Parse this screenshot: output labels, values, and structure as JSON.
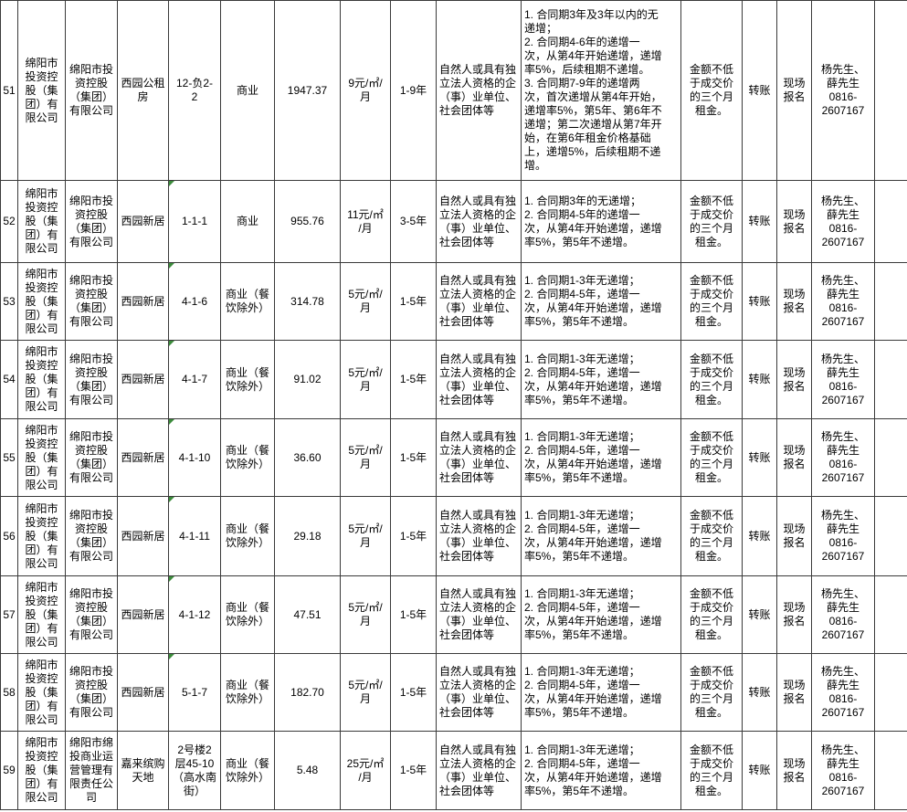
{
  "colors": {
    "error_indicator_green": "#3c8c3c",
    "grid_line": "#3a3a3a",
    "text": "#000000",
    "background": "#ffffff"
  },
  "table": {
    "column_keys": [
      "row_no",
      "lessor",
      "operating_company",
      "property_name",
      "unit_number",
      "use_type",
      "area_sqm",
      "rent_price",
      "lease_term",
      "eligible_applicants",
      "escalation_terms",
      "deposit",
      "payment_method",
      "registration_method",
      "contact",
      "notes"
    ],
    "rows": [
      {
        "row_no": "51",
        "lessor": "绵阳市\n投资控\n股（集\n团）有\n限公司",
        "operating_company": "绵阳市投\n资控股\n（集团）\n有限公司",
        "property_name": "西园公租\n房",
        "unit_number": "12-负2-\n2",
        "use_type": "商业",
        "area_sqm": "1947.37",
        "rent_price": "9元/㎡/\n月",
        "lease_term": "1-9年",
        "eligible_applicants": "自然人或具有独\n立法人资格的企\n（事）业单位、\n社会团体等",
        "escalation_terms": "1. 合同期3年及3年以内的无\n递增；\n2. 合同期4-6年的递增一\n次，从第4年开始递增，递增\n率5%，后续租期不递增。\n3. 合同期7-9年的递增两\n次，首次递增从第4年开始，\n递增率5%，第5年、第6年不\n递增；第二次递增从第7年开\n始，在第6年租金价格基础\n上，递增5%，后续租期不递\n增。",
        "deposit": "金额不低\n于成交价\n的三个月\n租金。",
        "payment_method": "转账",
        "registration_method": "现场\n报名",
        "contact": "杨先生、\n薛先生\n0816-\n2607167",
        "notes": "",
        "unit_error_indicator": false
      },
      {
        "row_no": "52",
        "lessor": "绵阳市\n投资控\n股（集\n团）有\n限公司",
        "operating_company": "绵阳市投\n资控股\n（集团）\n有限公司",
        "property_name": "西园新居",
        "unit_number": "1-1-1",
        "use_type": "商业",
        "area_sqm": "955.76",
        "rent_price": "11元/㎡\n/月",
        "lease_term": "3-5年",
        "eligible_applicants": "自然人或具有独\n立法人资格的企\n（事）业单位、\n社会团体等",
        "escalation_terms": "1. 合同期3年的无递增；\n2. 合同期4-5年的递增一\n次，从第4年开始递增，递增\n率5%，第5年不递增。",
        "deposit": "金额不低\n于成交价\n的三个月\n租金。",
        "payment_method": "转账",
        "registration_method": "现场\n报名",
        "contact": "杨先生、\n薛先生\n0816-\n2607167",
        "notes": "",
        "unit_error_indicator": true
      },
      {
        "row_no": "53",
        "lessor": "绵阳市\n投资控\n股（集\n团）有\n限公司",
        "operating_company": "绵阳市投\n资控股\n（集团）\n有限公司",
        "property_name": "西园新居",
        "unit_number": "4-1-6",
        "use_type": "商业（餐\n饮除外）",
        "area_sqm": "314.78",
        "rent_price": "5元/㎡/\n月",
        "lease_term": "1-5年",
        "eligible_applicants": "自然人或具有独\n立法人资格的企\n（事）业单位、\n社会团体等",
        "escalation_terms": "1. 合同期1-3年无递增；\n2. 合同期4-5年，递增一\n次，从第4年开始递增，递增\n率5%，第5年不递增。",
        "deposit": "金额不低\n于成交价\n的三个月\n租金。",
        "payment_method": "转账",
        "registration_method": "现场\n报名",
        "contact": "杨先生、\n薛先生\n0816-\n2607167",
        "notes": "",
        "unit_error_indicator": true
      },
      {
        "row_no": "54",
        "lessor": "绵阳市\n投资控\n股（集\n团）有\n限公司",
        "operating_company": "绵阳市投\n资控股\n（集团）\n有限公司",
        "property_name": "西园新居",
        "unit_number": "4-1-7",
        "use_type": "商业（餐\n饮除外）",
        "area_sqm": "91.02",
        "rent_price": "5元/㎡/\n月",
        "lease_term": "1-5年",
        "eligible_applicants": "自然人或具有独\n立法人资格的企\n（事）业单位、\n社会团体等",
        "escalation_terms": "1. 合同期1-3年无递增；\n2. 合同期4-5年，递增一\n次，从第4年开始递增，递增\n率5%，第5年不递增。",
        "deposit": "金额不低\n于成交价\n的三个月\n租金。",
        "payment_method": "转账",
        "registration_method": "现场\n报名",
        "contact": "杨先生、\n薛先生\n0816-\n2607167",
        "notes": "",
        "unit_error_indicator": true
      },
      {
        "row_no": "55",
        "lessor": "绵阳市\n投资控\n股（集\n团）有\n限公司",
        "operating_company": "绵阳市投\n资控股\n（集团）\n有限公司",
        "property_name": "西园新居",
        "unit_number": "4-1-10",
        "use_type": "商业（餐\n饮除外）",
        "area_sqm": "36.60",
        "rent_price": "5元/㎡/\n月",
        "lease_term": "1-5年",
        "eligible_applicants": "自然人或具有独\n立法人资格的企\n（事）业单位、\n社会团体等",
        "escalation_terms": "1. 合同期1-3年无递增；\n2. 合同期4-5年，递增一\n次，从第4年开始递增，递增\n率5%，第5年不递增。",
        "deposit": "金额不低\n于成交价\n的三个月\n租金。",
        "payment_method": "转账",
        "registration_method": "现场\n报名",
        "contact": "杨先生、\n薛先生\n0816-\n2607167",
        "notes": "",
        "unit_error_indicator": true
      },
      {
        "row_no": "56",
        "lessor": "绵阳市\n投资控\n股（集\n团）有\n限公司",
        "operating_company": "绵阳市投\n资控股\n（集团）\n有限公司",
        "property_name": "西园新居",
        "unit_number": "4-1-11",
        "use_type": "商业（餐\n饮除外）",
        "area_sqm": "29.18",
        "rent_price": "5元/㎡/\n月",
        "lease_term": "1-5年",
        "eligible_applicants": "自然人或具有独\n立法人资格的企\n（事）业单位、\n社会团体等",
        "escalation_terms": "1. 合同期1-3年无递增；\n2. 合同期4-5年，递增一\n次，从第4年开始递增，递增\n率5%，第5年不递增。",
        "deposit": "金额不低\n于成交价\n的三个月\n租金。",
        "payment_method": "转账",
        "registration_method": "现场\n报名",
        "contact": "杨先生、\n薛先生\n0816-\n2607167",
        "notes": "",
        "unit_error_indicator": true
      },
      {
        "row_no": "57",
        "lessor": "绵阳市\n投资控\n股（集\n团）有\n限公司",
        "operating_company": "绵阳市投\n资控股\n（集团）\n有限公司",
        "property_name": "西园新居",
        "unit_number": "4-1-12",
        "use_type": "商业（餐\n饮除外）",
        "area_sqm": "47.51",
        "rent_price": "5元/㎡/\n月",
        "lease_term": "1-5年",
        "eligible_applicants": "自然人或具有独\n立法人资格的企\n（事）业单位、\n社会团体等",
        "escalation_terms": "1. 合同期1-3年无递增；\n2. 合同期4-5年，递增一\n次，从第4年开始递增，递增\n率5%，第5年不递增。",
        "deposit": "金额不低\n于成交价\n的三个月\n租金。",
        "payment_method": "转账",
        "registration_method": "现场\n报名",
        "contact": "杨先生、\n薛先生\n0816-\n2607167",
        "notes": "",
        "unit_error_indicator": true
      },
      {
        "row_no": "58",
        "lessor": "绵阳市\n投资控\n股（集\n团）有\n限公司",
        "operating_company": "绵阳市投\n资控股\n（集团）\n有限公司",
        "property_name": "西园新居",
        "unit_number": "5-1-7",
        "use_type": "商业（餐\n饮除外）",
        "area_sqm": "182.70",
        "rent_price": "5元/㎡/\n月",
        "lease_term": "1-5年",
        "eligible_applicants": "自然人或具有独\n立法人资格的企\n（事）业单位、\n社会团体等",
        "escalation_terms": "1. 合同期1-3年无递增；\n2. 合同期4-5年，递增一\n次，从第4年开始递增，递增\n率5%，第5年不递增。",
        "deposit": "金额不低\n于成交价\n的三个月\n租金。",
        "payment_method": "转账",
        "registration_method": "现场\n报名",
        "contact": "杨先生、\n薛先生\n0816-\n2607167",
        "notes": "",
        "unit_error_indicator": true
      },
      {
        "row_no": "59",
        "lessor": "绵阳市\n投资控\n股（集\n团）有\n限公司",
        "operating_company": "绵阳市绵\n投商业运\n营管理有\n限责任公\n司",
        "property_name": "嘉来缤购\n天地",
        "unit_number": "2号楼2\n层45-10\n（高水南\n街）",
        "use_type": "商业（餐\n饮除外）",
        "area_sqm": "5.48",
        "rent_price": "25元/㎡\n/月",
        "lease_term": "1-5年",
        "eligible_applicants": "自然人或具有独\n立法人资格的企\n（事）业单位、\n社会团体等",
        "escalation_terms": "1. 合同期1-3年无递增；\n2. 合同期4-5年，递增一\n次，从第4年开始递增，递增\n率5%，第5年不递增。",
        "deposit": "金额不低\n于成交价\n的三个月\n租金。",
        "payment_method": "转账",
        "registration_method": "现场\n报名",
        "contact": "杨先生、\n薛先生\n0816-\n2607167",
        "notes": "",
        "unit_error_indicator": false
      }
    ]
  }
}
